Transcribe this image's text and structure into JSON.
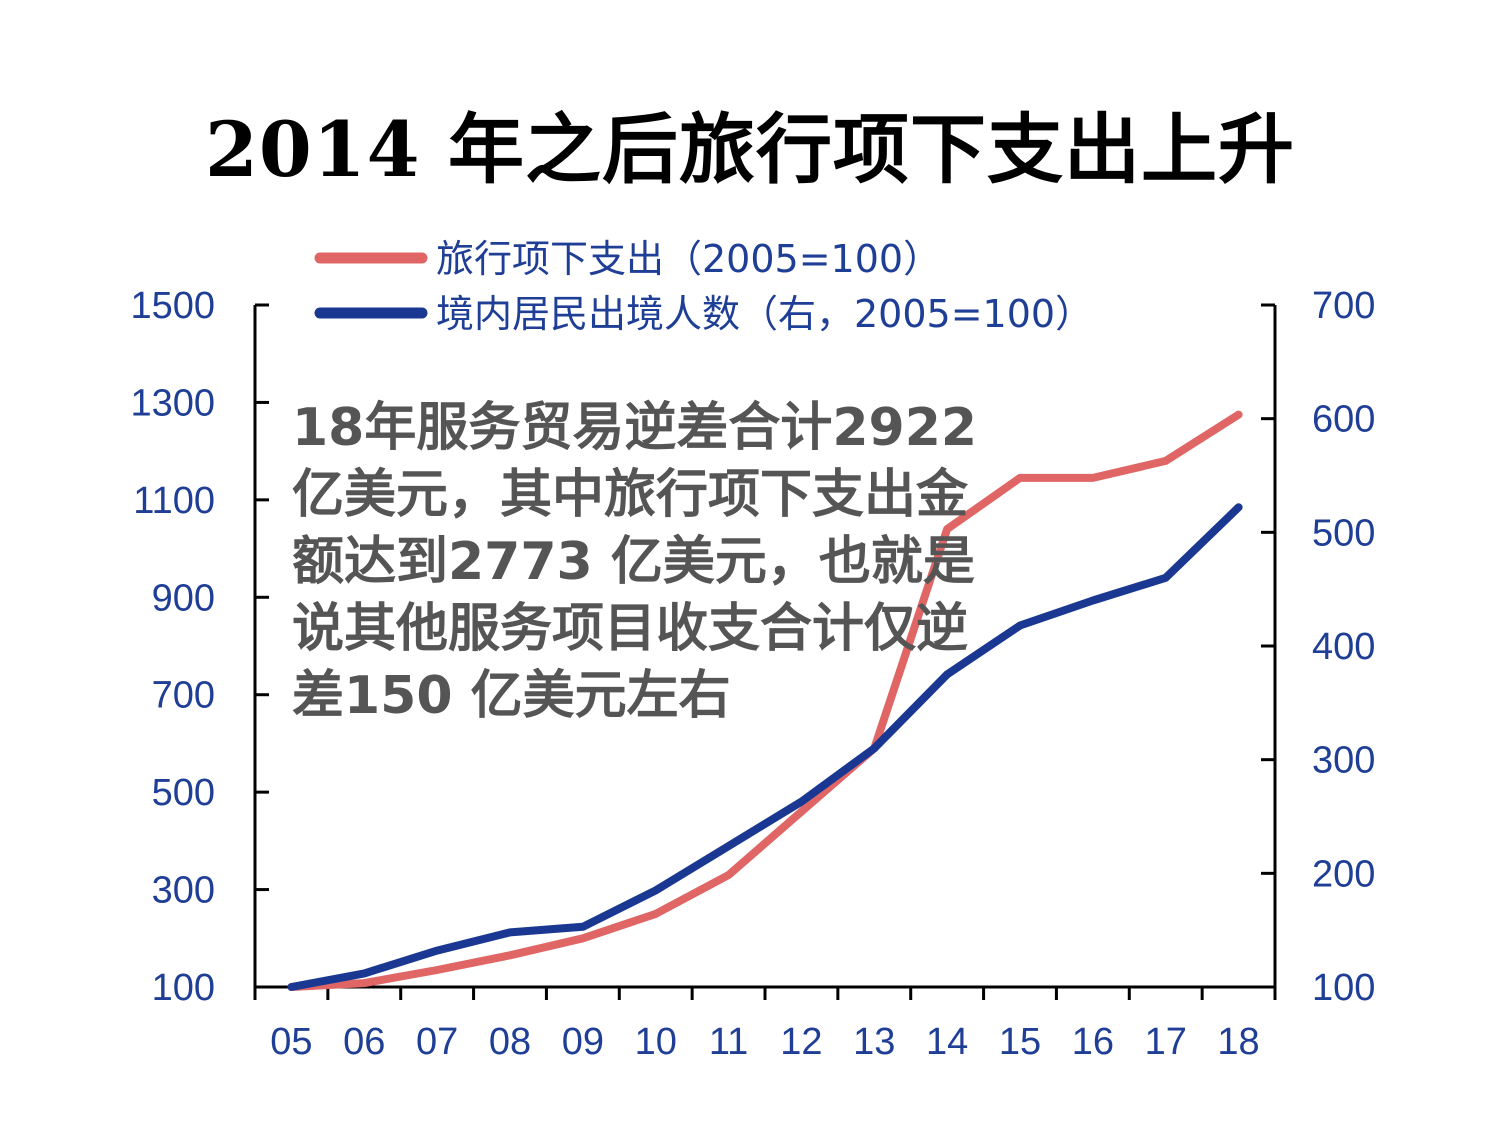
{
  "chart_data": {
    "type": "line",
    "title": "2014 年之后旅行项下支出上升",
    "categories": [
      "05",
      "06",
      "07",
      "08",
      "09",
      "10",
      "11",
      "12",
      "13",
      "14",
      "15",
      "16",
      "17",
      "18"
    ],
    "y_left": {
      "range": [
        100,
        1500
      ],
      "ticks": [
        "1500",
        "1300",
        "1100",
        "900",
        "700",
        "500",
        "300",
        "100"
      ]
    },
    "y_right": {
      "range": [
        100,
        700
      ],
      "ticks": [
        "700",
        "600",
        "500",
        "400",
        "300",
        "200",
        "100"
      ]
    },
    "series": [
      {
        "name": "旅行项下支出（2005=100）",
        "axis": "left",
        "color": "#e06666",
        "values": [
          100,
          108,
          135,
          165,
          200,
          250,
          330,
          460,
          590,
          1040,
          1145,
          1145,
          1180,
          1275
        ]
      },
      {
        "name": "境内居民出境人数（右，2005=100）",
        "axis": "right",
        "color": "#1a3891",
        "values": [
          100,
          112,
          132,
          148,
          153,
          185,
          224,
          263,
          310,
          375,
          418,
          440,
          460,
          522
        ]
      }
    ],
    "legend_position": "top",
    "grid": false
  },
  "annotation": {
    "lines": [
      "18年服务贸易逆差合计2922",
      "亿美元，其中旅行项下支出金",
      "额达到2773 亿美元，也就是",
      "说其他服务项目收支合计仅逆",
      "差150 亿美元左右"
    ]
  }
}
